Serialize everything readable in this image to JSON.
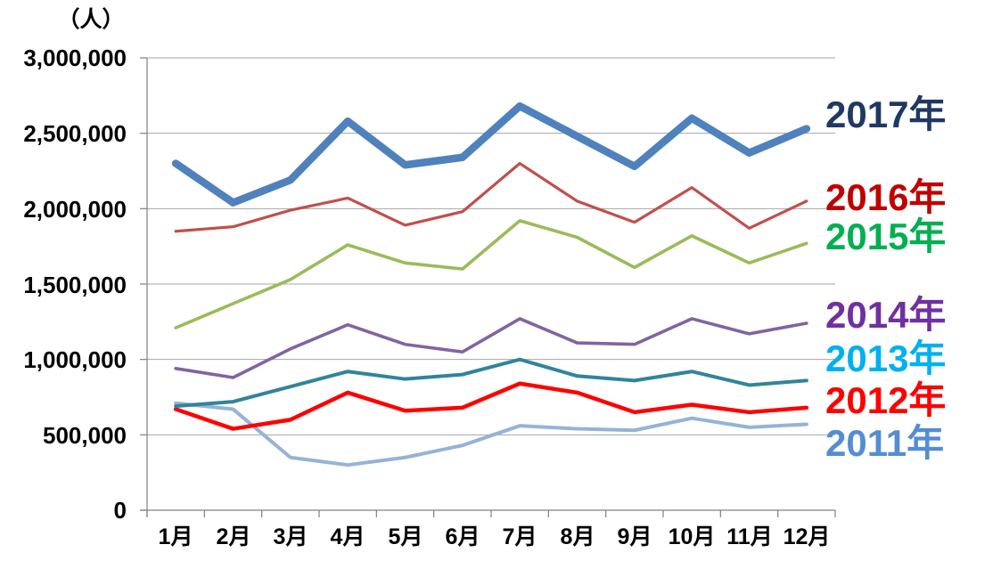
{
  "unit_label": "（人）",
  "axis": {
    "y_ticks": [
      "3,000,000",
      "2,500,000",
      "2,000,000",
      "1,500,000",
      "1,000,000",
      "500,000",
      "0"
    ],
    "x_ticks": [
      "1月",
      "2月",
      "3月",
      "4月",
      "5月",
      "6月",
      "7月",
      "8月",
      "9月",
      "10月",
      "11月",
      "12月"
    ]
  },
  "colors": {
    "grid": "#A6A6A6",
    "axis": "#808080",
    "background": "#FFFFFF"
  },
  "chart_data": {
    "type": "line",
    "title": "",
    "xlabel": "",
    "ylabel": "（人）",
    "ylim": [
      0,
      3000000
    ],
    "y_tick_step": 500000,
    "grid": true,
    "legend_position": "right",
    "categories": [
      "1月",
      "2月",
      "3月",
      "4月",
      "5月",
      "6月",
      "7月",
      "8月",
      "9月",
      "10月",
      "11月",
      "12月"
    ],
    "series": [
      {
        "name": "2017年",
        "color": "#4F81BD",
        "label_color": "#1F3864",
        "width": 8.5,
        "values": [
          2300000,
          2040000,
          2190000,
          2580000,
          2290000,
          2340000,
          2680000,
          2480000,
          2280000,
          2600000,
          2370000,
          2530000
        ]
      },
      {
        "name": "2016年",
        "color": "#C0504D",
        "label_color": "#C00000",
        "width": 3.2,
        "values": [
          1850000,
          1880000,
          1990000,
          2070000,
          1890000,
          1980000,
          2300000,
          2050000,
          1910000,
          2140000,
          1870000,
          2050000
        ]
      },
      {
        "name": "2015年",
        "color": "#9BBB59",
        "label_color": "#00B050",
        "width": 3.6,
        "values": [
          1210000,
          1370000,
          1530000,
          1760000,
          1640000,
          1600000,
          1920000,
          1810000,
          1610000,
          1820000,
          1640000,
          1770000
        ]
      },
      {
        "name": "2014年",
        "color": "#8064A2",
        "label_color": "#7030A0",
        "width": 3.6,
        "values": [
          940000,
          880000,
          1070000,
          1230000,
          1100000,
          1050000,
          1270000,
          1110000,
          1100000,
          1270000,
          1170000,
          1240000
        ]
      },
      {
        "name": "2013年",
        "color": "#31849B",
        "label_color": "#00B0F0",
        "width": 4,
        "values": [
          690000,
          720000,
          820000,
          920000,
          870000,
          900000,
          1000000,
          890000,
          860000,
          920000,
          830000,
          860000
        ]
      },
      {
        "name": "2012年",
        "color": "#FF0000",
        "label_color": "#FF0000",
        "width": 4.5,
        "values": [
          670000,
          540000,
          600000,
          780000,
          660000,
          680000,
          840000,
          780000,
          650000,
          700000,
          650000,
          680000
        ]
      },
      {
        "name": "2011年",
        "color": "#95B3D7",
        "label_color": "#548DD4",
        "width": 4,
        "values": [
          710000,
          670000,
          350000,
          300000,
          350000,
          430000,
          560000,
          540000,
          530000,
          610000,
          550000,
          570000
        ]
      }
    ]
  }
}
